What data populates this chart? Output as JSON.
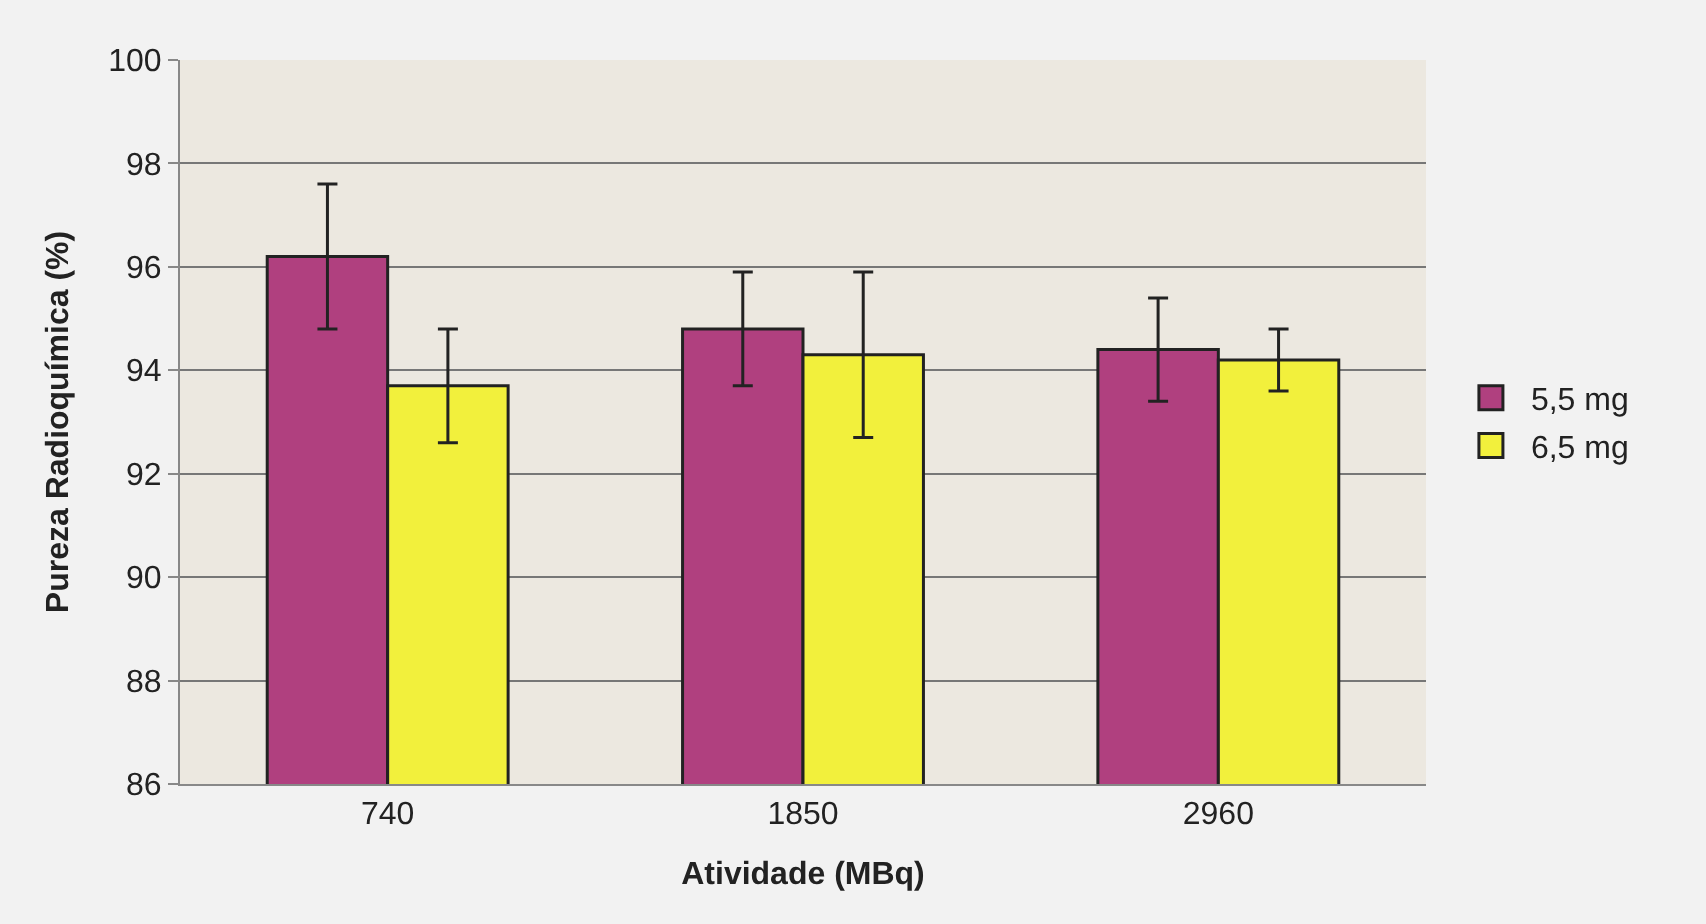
{
  "chart_data": {
    "type": "bar",
    "xlabel": "Atividade (MBq)",
    "ylabel": "Pureza Radioquímica (%)",
    "categories": [
      "740",
      "1850",
      "2960"
    ],
    "series": [
      {
        "name": "5,5 mg",
        "color": "#b0407f",
        "values": [
          96.2,
          94.8,
          94.4
        ],
        "errors": [
          1.4,
          1.1,
          1.0
        ]
      },
      {
        "name": "6,5 mg",
        "color": "#f2f03c",
        "values": [
          93.7,
          94.3,
          94.2
        ],
        "errors": [
          1.1,
          1.6,
          0.6
        ]
      }
    ],
    "ylim": [
      86,
      100
    ],
    "yticks": [
      86,
      88,
      90,
      92,
      94,
      96,
      98,
      100
    ],
    "grid": "y",
    "legend": "right"
  }
}
